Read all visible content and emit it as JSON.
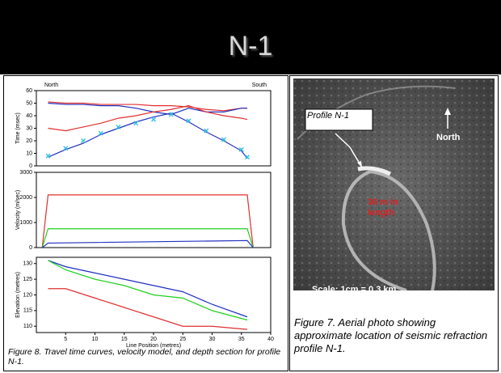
{
  "slide_title": "N-1",
  "chart_data": [
    {
      "type": "line",
      "ylabel": "Time (msec)",
      "left_label": "North",
      "right_label": "South",
      "x": [
        2,
        5,
        8,
        11,
        14,
        17,
        20,
        23,
        26,
        29,
        32,
        35,
        36
      ],
      "xlim": [
        0,
        40
      ],
      "ylim": [
        0,
        60
      ],
      "yticks": [
        0,
        10,
        20,
        30,
        40,
        50,
        60
      ],
      "series": [
        {
          "color": "#e03030",
          "values": [
            51,
            50,
            50,
            49,
            49,
            49,
            48,
            48,
            47,
            45,
            44,
            46,
            46
          ]
        },
        {
          "color": "#2030c0",
          "values": [
            50,
            49,
            49,
            48,
            48,
            46,
            43,
            41,
            46,
            43,
            43,
            46,
            46
          ]
        },
        {
          "color": "#e03030",
          "values": [
            30,
            28,
            31,
            34,
            38,
            40,
            43,
            45,
            48,
            43,
            40,
            38,
            37
          ]
        },
        {
          "color": "#2030c0",
          "values": [
            7,
            13,
            18,
            25,
            30,
            35,
            39,
            42,
            35,
            27,
            20,
            12,
            6
          ]
        },
        {
          "color": "#30c0e0",
          "marker": "x",
          "values": [
            8,
            14,
            20,
            26,
            31,
            34,
            37,
            41,
            36,
            28,
            21,
            13,
            7
          ]
        }
      ]
    },
    {
      "type": "line",
      "ylabel": "Velocity (m/sec)",
      "x": [
        1,
        2,
        36,
        37
      ],
      "xlim": [
        0,
        40
      ],
      "ylim": [
        0,
        3000
      ],
      "yticks": [
        0,
        1000,
        2000,
        3000
      ],
      "series": [
        {
          "color": "#e03030",
          "values": [
            0,
            2100,
            2100,
            0
          ]
        },
        {
          "color": "#20d020",
          "values": [
            0,
            750,
            750,
            0
          ]
        },
        {
          "color": "#2030c0",
          "values": [
            0,
            180,
            280,
            0
          ]
        }
      ]
    },
    {
      "type": "line",
      "ylabel": "Elevation (metres)",
      "xlabel": "Line Position (metres)",
      "x": [
        2,
        5,
        10,
        15,
        20,
        25,
        30,
        36
      ],
      "xlim": [
        0,
        40
      ],
      "ylim": [
        108,
        132
      ],
      "yticks": [
        110,
        115,
        120,
        125,
        130
      ],
      "xticks": [
        5,
        10,
        15,
        20,
        25,
        30,
        35,
        40
      ],
      "series": [
        {
          "color": "#2030c0",
          "values": [
            131,
            129,
            127,
            125,
            123,
            121,
            117,
            113
          ]
        },
        {
          "color": "#20d020",
          "values": [
            131,
            128,
            125,
            123,
            120,
            119,
            115,
            112
          ]
        },
        {
          "color": "#e03030",
          "values": [
            122,
            122,
            119,
            116,
            113,
            110,
            110,
            109
          ]
        }
      ]
    }
  ],
  "left_caption": "Figure 8. Travel time curves, velocity model, and depth section for profile N-1.",
  "photo": {
    "profile_label": "Profile N-1",
    "north_label": "North",
    "length_label": "36 m in length",
    "scale_label": "Scale: 1cm = 0.3 km"
  },
  "right_caption": "Figure 7.  Aerial photo showing approximate location of seismic refraction profile N-1."
}
